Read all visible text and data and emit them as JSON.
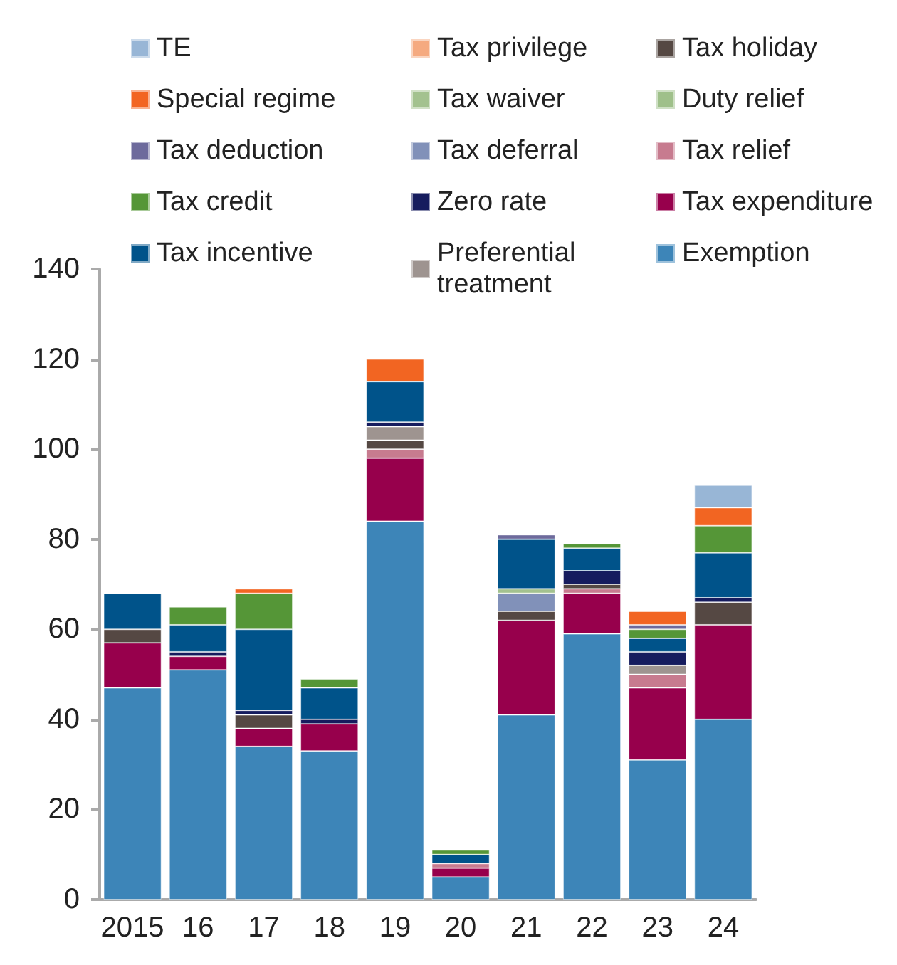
{
  "chart_data": {
    "type": "bar",
    "stacked": true,
    "categories": [
      "2015",
      "16",
      "17",
      "18",
      "19",
      "20",
      "21",
      "22",
      "23",
      "24"
    ],
    "series": [
      {
        "name": "Exemption",
        "color": "#3d85b8",
        "values": [
          47,
          51,
          34,
          33,
          84,
          5,
          41,
          59,
          31,
          40
        ]
      },
      {
        "name": "Tax expenditure",
        "color": "#97004c",
        "values": [
          10,
          3,
          4,
          6,
          14,
          2,
          21,
          9,
          16,
          21
        ]
      },
      {
        "name": "Tax relief",
        "color": "#c77b8f",
        "values": [
          null,
          null,
          null,
          null,
          2,
          1,
          null,
          1,
          3,
          null
        ]
      },
      {
        "name": "Duty relief",
        "color": "#9fc08a",
        "values": [
          null,
          null,
          null,
          null,
          null,
          null,
          null,
          null,
          null,
          null
        ]
      },
      {
        "name": "Tax holiday",
        "color": "#554843",
        "values": [
          3,
          null,
          3,
          null,
          2,
          null,
          2,
          1,
          null,
          5
        ]
      },
      {
        "name": "Preferential treatment",
        "color": "#9e9490",
        "values": [
          null,
          null,
          null,
          null,
          3,
          null,
          null,
          null,
          2,
          null
        ]
      },
      {
        "name": "Zero rate",
        "color": "#161c5e",
        "values": [
          null,
          1,
          1,
          1,
          1,
          null,
          null,
          3,
          3,
          1
        ]
      },
      {
        "name": "Tax deferral",
        "color": "#8191b9",
        "values": [
          null,
          null,
          null,
          null,
          null,
          null,
          4,
          null,
          null,
          null
        ]
      },
      {
        "name": "Tax waiver",
        "color": "#a3c28f",
        "values": [
          null,
          null,
          null,
          null,
          null,
          null,
          1,
          null,
          null,
          null
        ]
      },
      {
        "name": "Tax privilege",
        "color": "#f5aa80",
        "values": [
          null,
          null,
          null,
          null,
          null,
          null,
          null,
          null,
          null,
          null
        ]
      },
      {
        "name": "Tax incentive",
        "color": "#00538a",
        "values": [
          8,
          6,
          18,
          7,
          9,
          2,
          11,
          5,
          3,
          10
        ]
      },
      {
        "name": "Tax credit",
        "color": "#559637",
        "values": [
          null,
          4,
          8,
          2,
          null,
          1,
          null,
          1,
          2,
          6
        ]
      },
      {
        "name": "Tax deduction",
        "color": "#6d6a9c",
        "values": [
          null,
          null,
          null,
          null,
          null,
          null,
          1,
          null,
          1,
          null
        ]
      },
      {
        "name": "Special regime",
        "color": "#f26522",
        "values": [
          null,
          null,
          1,
          null,
          5,
          null,
          null,
          null,
          3,
          4
        ]
      },
      {
        "name": "TE",
        "color": "#98b6d6",
        "values": [
          null,
          null,
          null,
          null,
          null,
          null,
          null,
          null,
          null,
          5
        ]
      }
    ],
    "ylim": [
      0,
      140
    ],
    "yticks": [
      0,
      20,
      40,
      60,
      80,
      100,
      120,
      140
    ],
    "grid": false,
    "legend": "top"
  }
}
